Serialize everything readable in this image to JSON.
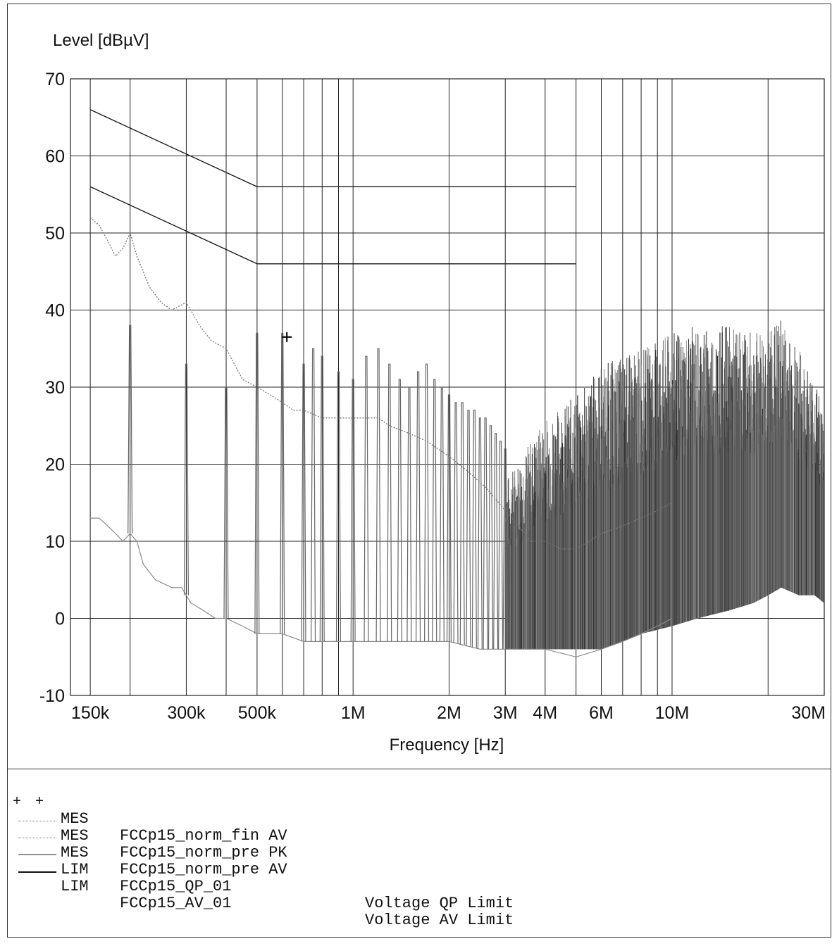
{
  "chart_data": {
    "type": "line",
    "ylabel": "Level [dBµV]",
    "xlabel": "Frequency [Hz]",
    "x_scale": "log",
    "xlim": [
      130000,
      30000000
    ],
    "ylim": [
      -10,
      70
    ],
    "grid": true,
    "x_tick_labels": [
      {
        "value": 150000,
        "label": "150k"
      },
      {
        "value": 300000,
        "label": "300k"
      },
      {
        "value": 500000,
        "label": "500k"
      },
      {
        "value": 1000000,
        "label": "1M"
      },
      {
        "value": 2000000,
        "label": "2M"
      },
      {
        "value": 3000000,
        "label": "3M"
      },
      {
        "value": 4000000,
        "label": "4M"
      },
      {
        "value": 6000000,
        "label": "6M"
      },
      {
        "value": 10000000,
        "label": "10M"
      },
      {
        "value": 30000000,
        "label": "30M"
      }
    ],
    "x_gridlines": [
      150000,
      200000,
      300000,
      400000,
      500000,
      600000,
      700000,
      800000,
      900000,
      1000000,
      2000000,
      3000000,
      4000000,
      5000000,
      6000000,
      7000000,
      8000000,
      9000000,
      10000000,
      20000000,
      30000000
    ],
    "y_ticks": [
      -10,
      0,
      10,
      20,
      30,
      40,
      50,
      60,
      70
    ],
    "limits": {
      "qp": {
        "x": [
          150000,
          500000,
          500000,
          5000000
        ],
        "y": [
          66,
          56,
          56,
          56
        ]
      },
      "av": {
        "x": [
          150000,
          500000,
          500000,
          5000000
        ],
        "y": [
          56,
          46,
          46,
          46
        ]
      }
    },
    "pk_trace": {
      "x": [
        150000,
        160000,
        170000,
        180000,
        190000,
        200000,
        210000,
        230000,
        250000,
        270000,
        300000,
        330000,
        360000,
        400000,
        450000,
        500000,
        550000,
        600000,
        650000,
        700000,
        800000,
        900000,
        1000000,
        1100000,
        1200000,
        1300000,
        1500000,
        1700000,
        2000000,
        2300000,
        2600000,
        3000000,
        3300000,
        3600000,
        4000000,
        4500000,
        5000000,
        5500000,
        6000000,
        7000000,
        8000000,
        9000000,
        10000000
      ],
      "y": [
        52,
        51,
        49,
        47,
        48,
        50,
        47,
        43,
        41,
        40,
        41,
        38,
        36,
        35,
        31,
        30,
        29,
        28,
        27,
        27,
        26,
        26,
        26,
        26,
        26,
        25,
        24,
        23,
        21,
        19,
        17,
        14,
        12,
        10,
        10,
        9,
        9,
        10,
        11,
        12,
        13,
        14,
        15
      ]
    },
    "av_floor": {
      "x": [
        150000,
        160000,
        170000,
        180000,
        190000,
        200000,
        210000,
        220000,
        240000,
        270000,
        290000,
        310000,
        340000,
        370000,
        400000,
        450000,
        500000,
        600000,
        700000,
        800000,
        1000000,
        1500000,
        2000000,
        2500000,
        3000000,
        4000000,
        5000000,
        6000000,
        7000000,
        8000000,
        9000000,
        10000000
      ],
      "y": [
        13,
        13,
        12,
        11,
        10,
        11,
        10,
        7,
        5,
        4,
        4,
        2,
        1,
        0,
        0,
        -1,
        -2,
        -2,
        -3,
        -3,
        -3,
        -3,
        -3,
        -4,
        -4,
        -4,
        -5,
        -4,
        -3,
        -2,
        -1,
        0
      ]
    },
    "av_peaks": {
      "x": [
        200000,
        300000,
        400000,
        500000,
        600000,
        700000,
        750000,
        800000,
        900000,
        1000000,
        1100000,
        1200000,
        1300000,
        1400000,
        1500000,
        1600000,
        1700000,
        1800000,
        1900000,
        2000000,
        2100000,
        2200000,
        2300000,
        2400000,
        2500000,
        2600000,
        2700000,
        2800000,
        2900000,
        3000000
      ],
      "y": [
        38,
        33,
        30,
        37,
        37,
        33,
        35,
        34,
        32,
        31,
        34,
        35,
        33,
        31,
        30,
        32,
        33,
        31,
        30,
        29,
        28,
        28,
        27,
        27,
        26,
        26,
        25,
        24,
        23,
        22
      ]
    },
    "dense_envelope": {
      "x": [
        3000000,
        4000000,
        5000000,
        6000000,
        7000000,
        8000000,
        10000000,
        12000000,
        15000000,
        18000000,
        20000000,
        22000000,
        25000000,
        28000000,
        30000000
      ],
      "upper": [
        18,
        26,
        29,
        33,
        34,
        35,
        37,
        38,
        38,
        37,
        38,
        39,
        35,
        31,
        27
      ],
      "lower": [
        -4,
        -4,
        -4,
        -4,
        -3,
        -2,
        -1,
        0,
        1,
        2,
        3,
        4,
        3,
        3,
        2
      ]
    },
    "final_marker": {
      "x": 620000,
      "y": 36.5
    },
    "legend": [
      {
        "symbol": "+ +",
        "style": "plus",
        "type": "MES",
        "name": "FCCp15_norm_fin AV",
        "desc": ""
      },
      {
        "symbol": "",
        "style": "dotted",
        "type": "MES",
        "name": "FCCp15_norm_pre PK",
        "desc": ""
      },
      {
        "symbol": "",
        "style": "dotted",
        "type": "MES",
        "name": "FCCp15_norm_pre AV",
        "desc": ""
      },
      {
        "symbol": "",
        "style": "solid",
        "type": "LIM",
        "name": "FCCp15_QP_01",
        "desc": "Voltage QP Limit"
      },
      {
        "symbol": "",
        "style": "solid heavy",
        "type": "LIM",
        "name": "FCCp15_AV_01",
        "desc": "Voltage AV Limit"
      }
    ],
    "colors": {
      "grid": "#222222",
      "limit": "#1a1a1a",
      "trace": "#8a8a8a",
      "dense": "#555555",
      "marker": "#000000"
    }
  }
}
